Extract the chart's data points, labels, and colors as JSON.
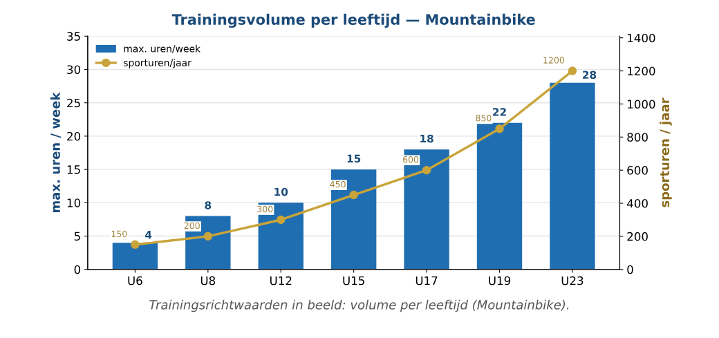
{
  "chart_data": {
    "type": "bar",
    "title": "Trainingsvolume per leeftijd — Mountainbike",
    "categories": [
      "U6",
      "U8",
      "U12",
      "U15",
      "U17",
      "U19",
      "U23"
    ],
    "series": [
      {
        "name": "max. uren/week",
        "type": "bar",
        "color": "#1f6eb2",
        "values": [
          4,
          8,
          10,
          15,
          18,
          22,
          28
        ]
      },
      {
        "name": "sporturen/jaar",
        "type": "line",
        "axis": "y2",
        "color": "#c9a43a",
        "marker": "circle",
        "values": [
          150,
          200,
          300,
          450,
          600,
          850,
          1200
        ]
      }
    ],
    "ylabel": "max. uren / week",
    "y2label": "sporturen / jaar",
    "ylim": [
      0,
      35
    ],
    "yticks": [
      0,
      5,
      10,
      15,
      20,
      25,
      30,
      35
    ],
    "y2lim": [
      0,
      1410
    ],
    "y2ticks": [
      0,
      200,
      400,
      600,
      800,
      1000,
      1200,
      1400
    ],
    "grid": "y",
    "legend": "top left",
    "data_labels": true,
    "annotations": [
      "Trainingsrichtwaarden in beeld: volume per leeftijd (Mountainbike)."
    ]
  }
}
